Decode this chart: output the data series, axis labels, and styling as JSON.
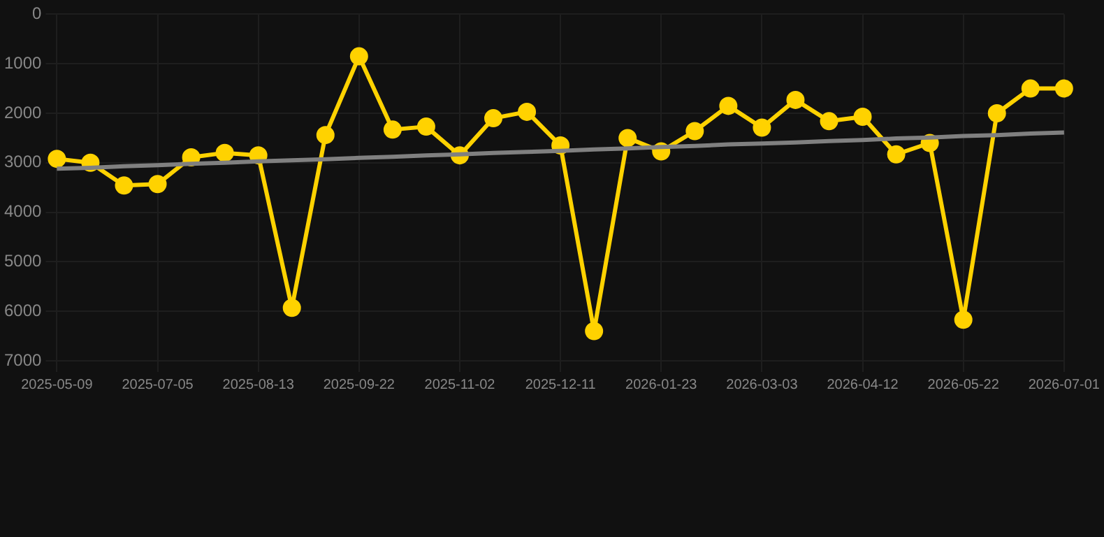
{
  "chart_data": {
    "type": "line",
    "categories": [
      "2025-05-09",
      null,
      null,
      "2025-07-05",
      null,
      null,
      "2025-08-13",
      null,
      null,
      "2025-09-22",
      null,
      null,
      "2025-11-02",
      null,
      null,
      "2025-12-11",
      null,
      null,
      "2026-01-23",
      null,
      null,
      "2026-03-03",
      null,
      null,
      "2026-04-12",
      null,
      null,
      "2026-05-22",
      null,
      null,
      "2026-07-01"
    ],
    "series": [
      {
        "color": "#ffd200",
        "marker": "circle",
        "values": [
          2920,
          3000,
          3460,
          3430,
          2890,
          2800,
          2850,
          5930,
          2440,
          850,
          2330,
          2270,
          2850,
          2100,
          1970,
          2650,
          6400,
          2500,
          2770,
          2360,
          1850,
          2290,
          1730,
          2160,
          2070,
          2830,
          2600,
          6170,
          2000,
          1500,
          1500
        ]
      },
      {
        "type": "line",
        "color": "#808080",
        "marker": "none",
        "values": [
          3120,
          3100,
          3070,
          3050,
          3020,
          3000,
          2970,
          2950,
          2930,
          2900,
          2880,
          2850,
          2830,
          2800,
          2780,
          2760,
          2730,
          2710,
          2680,
          2660,
          2630,
          2610,
          2590,
          2560,
          2540,
          2510,
          2490,
          2460,
          2440,
          2410,
          2390
        ]
      }
    ],
    "ylim": [
      7000,
      0
    ],
    "yticks": [
      0,
      1000,
      2000,
      3000,
      4000,
      5000,
      6000,
      7000
    ],
    "grid": true,
    "legend": false
  }
}
